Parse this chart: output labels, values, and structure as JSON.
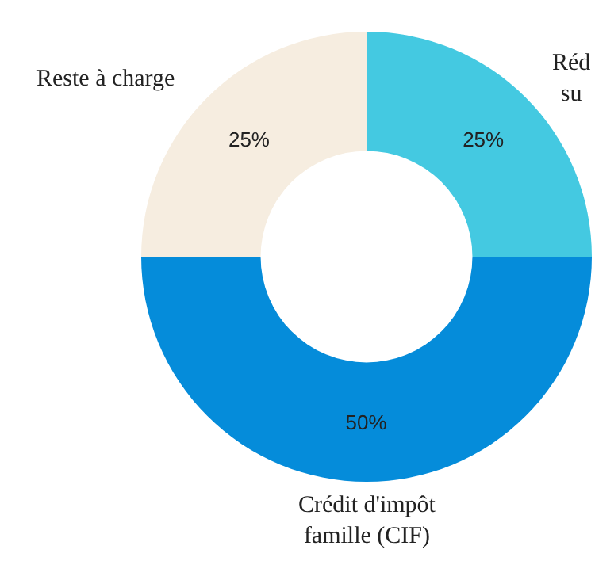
{
  "chart_data": {
    "type": "donut",
    "categories": [
      "Réd\nsu",
      "Crédit d'impôt\nfamille (CIF)",
      "Reste à charge"
    ],
    "values": [
      25,
      50,
      25
    ],
    "colors": [
      "#44c9e1",
      "#058cda",
      "#f6ede0"
    ],
    "value_labels": [
      "25%",
      "50%",
      "25%"
    ],
    "legend": false
  }
}
